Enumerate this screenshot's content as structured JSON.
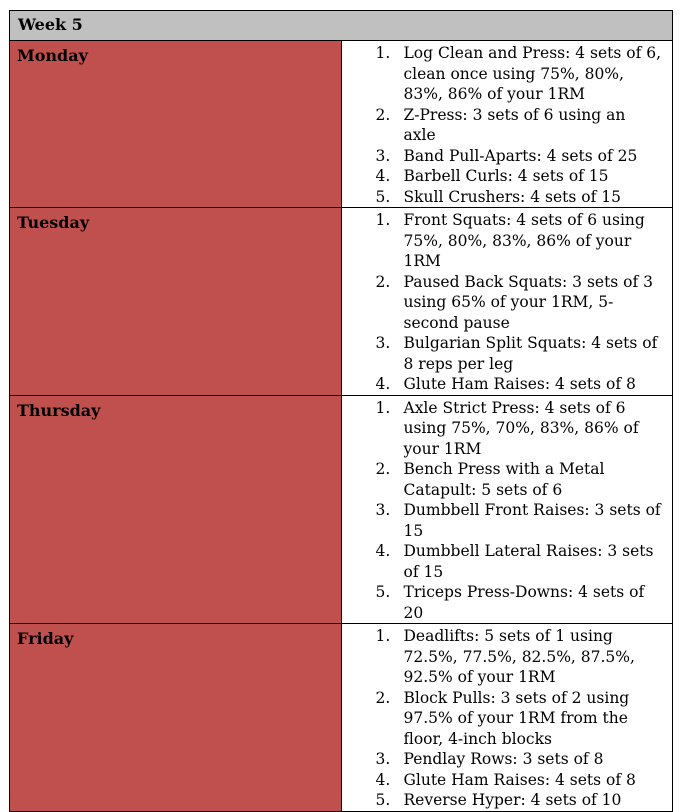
{
  "week_title": "Week 5",
  "days": [
    {
      "name": "Monday",
      "exercises": [
        "Log Clean and Press: 4 sets of 6, clean once using 75%, 80%, 83%, 86% of your 1RM",
        "Z-Press: 3 sets of 6 using an axle",
        "Band Pull-Aparts: 4 sets of 25",
        "Barbell Curls: 4 sets of 15",
        "Skull Crushers: 4 sets of 15"
      ]
    },
    {
      "name": "Tuesday",
      "exercises": [
        "Front Squats: 4 sets of 6 using 75%, 80%, 83%, 86% of your 1RM",
        "Paused Back Squats: 3 sets of 3 using 65% of your 1RM, 5-second pause",
        "Bulgarian Split Squats: 4 sets of 8 reps per leg",
        "Glute Ham Raises: 4 sets of 8"
      ]
    },
    {
      "name": "Thursday",
      "exercises": [
        "Axle Strict Press: 4 sets of 6 using 75%, 70%, 83%, 86% of your 1RM",
        "Bench Press with a Metal Catapult: 5 sets of 6",
        "Dumbbell Front Raises: 3 sets of 15",
        "Dumbbell Lateral Raises: 3 sets of 15",
        "Triceps Press-Downs: 4 sets of 20"
      ]
    },
    {
      "name": "Friday",
      "exercises": [
        "Deadlifts: 5 sets of 1 using 72.5%, 77.5%, 82.5%, 87.5%, 92.5% of your 1RM",
        "Block Pulls: 3 sets of 2 using 97.5% of your 1RM from the floor, 4-inch blocks",
        "Pendlay Rows: 3 sets of 8",
        "Glute Ham Raises: 4 sets of 8",
        "Reverse Hyper: 4 sets of 10"
      ]
    }
  ],
  "colors": {
    "header_bg": "#c0c0c0",
    "day_bg": "#c0504d",
    "border": "#000000"
  }
}
